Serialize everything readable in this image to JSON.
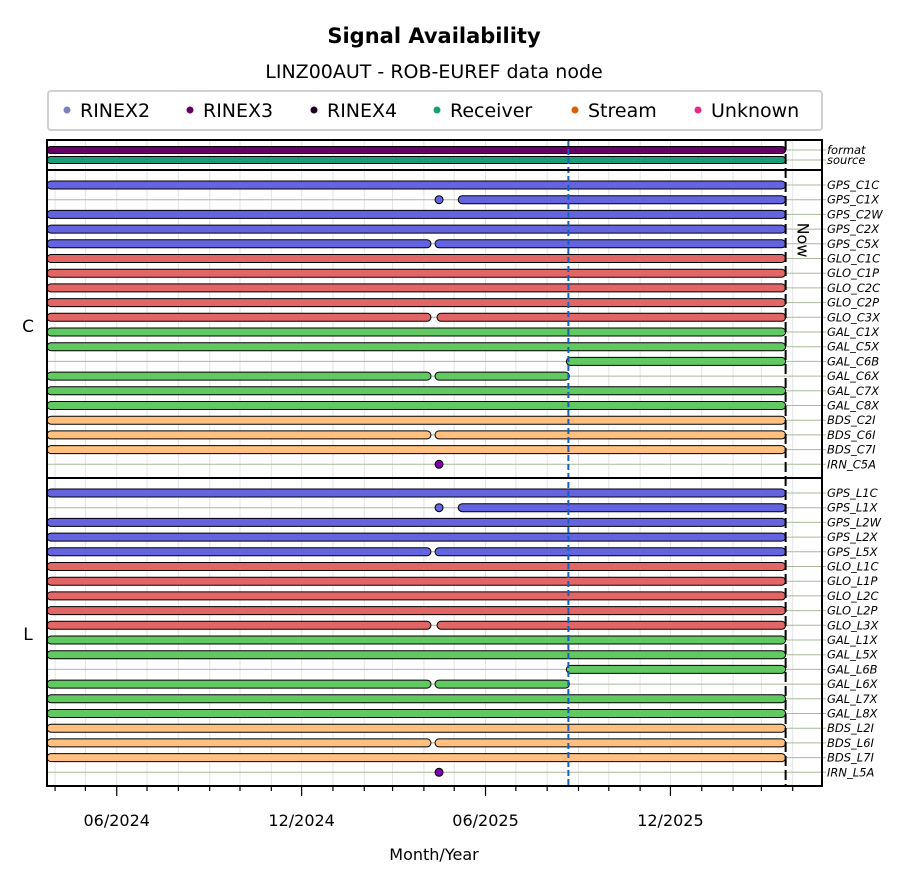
{
  "chart_data": {
    "type": "timeline",
    "title": "Signal Availability",
    "subtitle": "LINZ00AUT - ROB-EUREF data node",
    "xlabel": "Month/Year",
    "xlim": [
      "2024-03-24",
      "2026-04-30"
    ],
    "x_ticks": [
      "06/2024",
      "12/2024",
      "06/2025",
      "12/2025"
    ],
    "now_label": "Now",
    "now_date": "2026-03-25",
    "marker_date": "2025-08-22",
    "legend": [
      {
        "label": "RINEX2",
        "color": "#7f7fc0"
      },
      {
        "label": "RINEX3",
        "color": "#660066"
      },
      {
        "label": "RINEX4",
        "color": "#220022"
      },
      {
        "label": "Receiver",
        "color": "#1b9e77"
      },
      {
        "label": "Stream",
        "color": "#d95f02"
      },
      {
        "label": "Unknown",
        "color": "#e7298a"
      }
    ],
    "colors": {
      "format": "#660066",
      "source": "#1b9e77",
      "GPS": "#6464e0",
      "GLO": "#e26666",
      "GAL": "#62c862",
      "BDS": "#ffc080",
      "IRN": "#8000b0"
    },
    "meta_rows": [
      {
        "name": "format",
        "segments": [
          [
            "2024-01-01",
            "2026-03-25"
          ]
        ]
      },
      {
        "name": "source",
        "segments": [
          [
            "2024-01-01",
            "2026-03-25"
          ]
        ]
      }
    ],
    "panels": [
      {
        "label": "C",
        "rows": [
          {
            "name": "GPS_C1C",
            "segments": [
              [
                "2024-01-01",
                "2026-03-25"
              ]
            ]
          },
          {
            "name": "GPS_C1X",
            "segments": [
              [
                "2025-04-16",
                "2025-04-16"
              ],
              [
                "2025-05-05",
                "2026-03-25"
              ]
            ]
          },
          {
            "name": "GPS_C2W",
            "segments": [
              [
                "2024-01-01",
                "2026-03-25"
              ]
            ]
          },
          {
            "name": "GPS_C2X",
            "segments": [
              [
                "2024-01-01",
                "2026-03-25"
              ]
            ]
          },
          {
            "name": "GPS_C5X",
            "segments": [
              [
                "2024-01-01",
                "2025-04-08"
              ],
              [
                "2025-04-12",
                "2026-03-25"
              ]
            ]
          },
          {
            "name": "GLO_C1C",
            "segments": [
              [
                "2024-01-01",
                "2026-03-25"
              ]
            ]
          },
          {
            "name": "GLO_C1P",
            "segments": [
              [
                "2024-01-01",
                "2026-03-25"
              ]
            ]
          },
          {
            "name": "GLO_C2C",
            "segments": [
              [
                "2024-01-01",
                "2026-03-25"
              ]
            ]
          },
          {
            "name": "GLO_C2P",
            "segments": [
              [
                "2024-01-01",
                "2026-03-25"
              ]
            ]
          },
          {
            "name": "GLO_C3X",
            "segments": [
              [
                "2024-01-01",
                "2025-04-08"
              ],
              [
                "2025-04-14",
                "2026-03-25"
              ]
            ]
          },
          {
            "name": "GAL_C1X",
            "segments": [
              [
                "2024-01-01",
                "2026-03-25"
              ]
            ]
          },
          {
            "name": "GAL_C5X",
            "segments": [
              [
                "2024-01-01",
                "2026-03-25"
              ]
            ]
          },
          {
            "name": "GAL_C6B",
            "segments": [
              [
                "2025-08-20",
                "2026-03-25"
              ]
            ]
          },
          {
            "name": "GAL_C6X",
            "segments": [
              [
                "2024-01-01",
                "2025-04-08"
              ],
              [
                "2025-04-12",
                "2025-08-23"
              ]
            ]
          },
          {
            "name": "GAL_C7X",
            "segments": [
              [
                "2024-01-01",
                "2026-03-25"
              ]
            ]
          },
          {
            "name": "GAL_C8X",
            "segments": [
              [
                "2024-01-01",
                "2026-03-25"
              ]
            ]
          },
          {
            "name": "BDS_C2I",
            "segments": [
              [
                "2024-01-01",
                "2026-03-25"
              ]
            ]
          },
          {
            "name": "BDS_C6I",
            "segments": [
              [
                "2024-01-01",
                "2025-04-08"
              ],
              [
                "2025-04-12",
                "2026-03-25"
              ]
            ]
          },
          {
            "name": "BDS_C7I",
            "segments": [
              [
                "2024-01-01",
                "2026-03-25"
              ]
            ]
          },
          {
            "name": "IRN_C5A",
            "segments": [
              [
                "2025-04-16",
                "2025-04-16"
              ]
            ]
          }
        ]
      },
      {
        "label": "L",
        "rows": [
          {
            "name": "GPS_L1C",
            "segments": [
              [
                "2024-01-01",
                "2026-03-25"
              ]
            ]
          },
          {
            "name": "GPS_L1X",
            "segments": [
              [
                "2025-04-16",
                "2025-04-16"
              ],
              [
                "2025-05-05",
                "2026-03-25"
              ]
            ]
          },
          {
            "name": "GPS_L2W",
            "segments": [
              [
                "2024-01-01",
                "2026-03-25"
              ]
            ]
          },
          {
            "name": "GPS_L2X",
            "segments": [
              [
                "2024-01-01",
                "2026-03-25"
              ]
            ]
          },
          {
            "name": "GPS_L5X",
            "segments": [
              [
                "2024-01-01",
                "2025-04-08"
              ],
              [
                "2025-04-12",
                "2026-03-25"
              ]
            ]
          },
          {
            "name": "GLO_L1C",
            "segments": [
              [
                "2024-01-01",
                "2026-03-25"
              ]
            ]
          },
          {
            "name": "GLO_L1P",
            "segments": [
              [
                "2024-01-01",
                "2026-03-25"
              ]
            ]
          },
          {
            "name": "GLO_L2C",
            "segments": [
              [
                "2024-01-01",
                "2026-03-25"
              ]
            ]
          },
          {
            "name": "GLO_L2P",
            "segments": [
              [
                "2024-01-01",
                "2026-03-25"
              ]
            ]
          },
          {
            "name": "GLO_L3X",
            "segments": [
              [
                "2024-01-01",
                "2025-04-08"
              ],
              [
                "2025-04-14",
                "2026-03-25"
              ]
            ]
          },
          {
            "name": "GAL_L1X",
            "segments": [
              [
                "2024-01-01",
                "2026-03-25"
              ]
            ]
          },
          {
            "name": "GAL_L5X",
            "segments": [
              [
                "2024-01-01",
                "2026-03-25"
              ]
            ]
          },
          {
            "name": "GAL_L6B",
            "segments": [
              [
                "2025-08-20",
                "2026-03-25"
              ]
            ]
          },
          {
            "name": "GAL_L6X",
            "segments": [
              [
                "2024-01-01",
                "2025-04-08"
              ],
              [
                "2025-04-12",
                "2025-08-23"
              ]
            ]
          },
          {
            "name": "GAL_L7X",
            "segments": [
              [
                "2024-01-01",
                "2026-03-25"
              ]
            ]
          },
          {
            "name": "GAL_L8X",
            "segments": [
              [
                "2024-01-01",
                "2026-03-25"
              ]
            ]
          },
          {
            "name": "BDS_L2I",
            "segments": [
              [
                "2024-01-01",
                "2026-03-25"
              ]
            ]
          },
          {
            "name": "BDS_L6I",
            "segments": [
              [
                "2024-01-01",
                "2025-04-08"
              ],
              [
                "2025-04-12",
                "2026-03-25"
              ]
            ]
          },
          {
            "name": "BDS_L7I",
            "segments": [
              [
                "2024-01-01",
                "2026-03-25"
              ]
            ]
          },
          {
            "name": "IRN_L5A",
            "segments": [
              [
                "2025-04-16",
                "2025-04-16"
              ]
            ]
          }
        ]
      }
    ]
  }
}
